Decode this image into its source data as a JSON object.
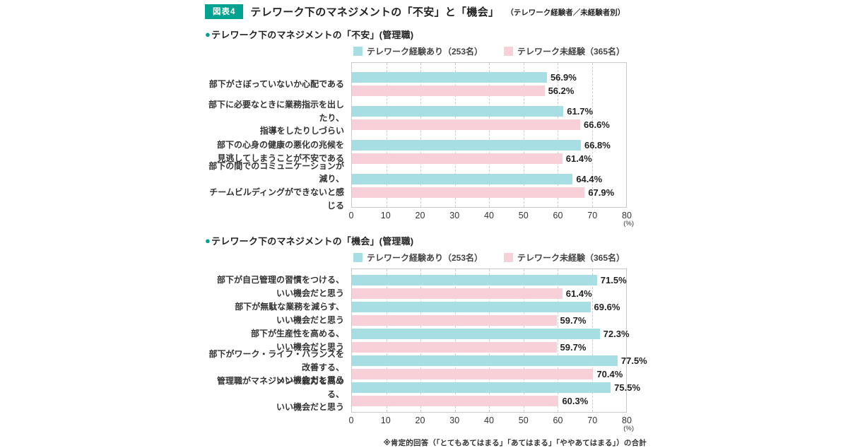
{
  "header": {
    "badge": "図表4",
    "title": "テレワーク下のマネジメントの「不安」と「機会」",
    "subtitle": "（テレワーク経験者／未経験者別）"
  },
  "marks": {
    "bullet": "●"
  },
  "legend": {
    "series1": "テレワーク経験あり（253名）",
    "series2": "テレワーク未経験（365名）"
  },
  "colors": {
    "accent_teal": "#00a390",
    "bar_experienced": "#a7dee3",
    "bar_inexperienced": "#f8d1d8",
    "plot_border": "#c9c9c9"
  },
  "footnote": "※肯定的回答（「とてもあてはまる」「あてはまる」「ややあてはまる」）の合計",
  "chart_data": [
    {
      "type": "bar",
      "orientation": "horizontal",
      "section_title": "テレワーク下のマネジメントの「不安」(管理職)",
      "categories": [
        [
          "部下がさぼっていないか心配である"
        ],
        [
          "部下に必要なときに業務指示を出したり、",
          "指導をしたりしづらい"
        ],
        [
          "部下の心身の健康の悪化の兆候を",
          "見逃してしまうことが不安である"
        ],
        [
          "部下の間でのコミュニケーションが減り、",
          "チームビルディングができないと感じる"
        ]
      ],
      "series": [
        {
          "name": "テレワーク経験あり（253名）",
          "color": "#a7dee3",
          "values": [
            56.9,
            61.7,
            66.8,
            64.4
          ]
        },
        {
          "name": "テレワーク未経験（365名）",
          "color": "#f8d1d8",
          "values": [
            56.2,
            66.6,
            61.4,
            67.9
          ]
        }
      ],
      "xlim": [
        0,
        80
      ],
      "xticks": [
        0,
        10,
        20,
        30,
        40,
        50,
        60,
        70,
        80
      ],
      "x_unit": "(%)",
      "value_suffix": "%",
      "grid": "dashed-vertical",
      "legend_position": "top-center"
    },
    {
      "type": "bar",
      "orientation": "horizontal",
      "section_title": "テレワーク下のマネジメントの「機会」(管理職)",
      "categories": [
        [
          "部下が自己管理の習慣をつける、",
          "いい機会だと思う"
        ],
        [
          "部下が無駄な業務を減らす、",
          "いい機会だと思う"
        ],
        [
          "部下が生産性を高める、",
          "いい機会だと思う"
        ],
        [
          "部下がワーク・ライフ・バランスを改善する、",
          "いい機会だと思う"
        ],
        [
          "管理職がマネジメント能力を高める、",
          "いい機会だと思う"
        ]
      ],
      "series": [
        {
          "name": "テレワーク経験あり（253名）",
          "color": "#a7dee3",
          "values": [
            71.5,
            69.6,
            72.3,
            77.5,
            75.5
          ]
        },
        {
          "name": "テレワーク未経験（365名）",
          "color": "#f8d1d8",
          "values": [
            61.4,
            59.7,
            59.7,
            70.4,
            60.3
          ]
        }
      ],
      "xlim": [
        0,
        80
      ],
      "xticks": [
        0,
        10,
        20,
        30,
        40,
        50,
        60,
        70,
        80
      ],
      "x_unit": "(%)",
      "value_suffix": "%",
      "grid": "dashed-vertical",
      "legend_position": "top-center"
    }
  ]
}
